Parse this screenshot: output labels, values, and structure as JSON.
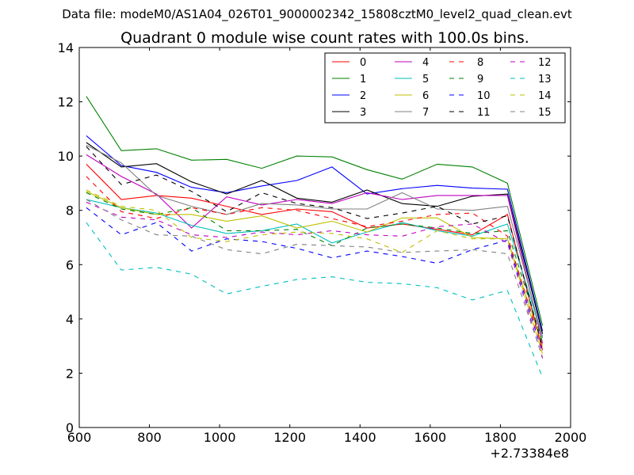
{
  "chart_data": {
    "type": "line",
    "suptitle": "Data file: modeM0/AS1A04_026T01_9000002342_15808cztM0_level2_quad_clean.evt",
    "title": "Quadrant 0 module wise count rates with 100.0s bins.",
    "xlabel": "",
    "ylabel": "",
    "xlim": [
      600,
      2000
    ],
    "ylim": [
      0,
      14
    ],
    "xticks": [
      "600",
      "800",
      "1000",
      "1200",
      "1400",
      "1600",
      "1800",
      "2000"
    ],
    "yticks": [
      "0",
      "2",
      "4",
      "6",
      "8",
      "10",
      "12",
      "14"
    ],
    "x_offset_label": "+2.73384e8",
    "legend_position": "top-right",
    "grid": false,
    "x": [
      620,
      720,
      820,
      920,
      1020,
      1120,
      1220,
      1320,
      1420,
      1520,
      1620,
      1720,
      1820,
      1920
    ],
    "series": [
      {
        "name": "0",
        "color": "#ff0000",
        "dashed": false,
        "values": [
          9.7,
          8.4,
          8.55,
          8.45,
          8.15,
          7.85,
          8.05,
          7.95,
          7.35,
          7.5,
          7.3,
          7.1,
          7.85,
          2.85
        ]
      },
      {
        "name": "1",
        "color": "#008000",
        "dashed": false,
        "values": [
          12.2,
          10.2,
          10.27,
          9.85,
          9.88,
          9.55,
          10.0,
          9.97,
          9.5,
          9.15,
          9.7,
          9.6,
          9.0,
          3.75
        ]
      },
      {
        "name": "2",
        "color": "#0000ff",
        "dashed": false,
        "values": [
          10.75,
          9.65,
          9.4,
          8.85,
          8.65,
          8.9,
          9.1,
          9.6,
          8.6,
          8.8,
          8.92,
          8.82,
          8.78,
          3.55
        ]
      },
      {
        "name": "3",
        "color": "#000000",
        "dashed": false,
        "values": [
          10.5,
          9.6,
          9.72,
          9.05,
          8.6,
          9.1,
          8.45,
          8.3,
          8.75,
          8.25,
          8.15,
          8.52,
          8.6,
          3.45
        ]
      },
      {
        "name": "4",
        "color": "#bf00bf",
        "dashed": false,
        "values": [
          10.05,
          9.25,
          8.6,
          7.35,
          8.5,
          8.2,
          8.4,
          8.25,
          8.65,
          8.4,
          8.55,
          8.55,
          8.55,
          3.1
        ]
      },
      {
        "name": "5",
        "color": "#00bfbf",
        "dashed": false,
        "values": [
          8.4,
          8.1,
          7.9,
          7.45,
          7.15,
          7.25,
          7.5,
          6.8,
          7.2,
          7.55,
          7.25,
          7.05,
          7.5,
          3.35
        ]
      },
      {
        "name": "6",
        "color": "#bfbf00",
        "dashed": false,
        "values": [
          8.7,
          8.1,
          7.85,
          7.85,
          7.6,
          7.8,
          7.35,
          7.6,
          7.2,
          7.72,
          7.72,
          7.0,
          6.95,
          3.0
        ]
      },
      {
        "name": "7",
        "color": "#808080",
        "dashed": false,
        "values": [
          10.4,
          9.75,
          8.55,
          8.15,
          7.85,
          8.25,
          8.2,
          8.05,
          8.05,
          8.65,
          8.05,
          8.0,
          8.15,
          3.3
        ]
      },
      {
        "name": "8",
        "color": "#ff0000",
        "dashed": true,
        "values": [
          9.25,
          7.95,
          7.7,
          8.1,
          7.85,
          8.1,
          8.0,
          7.7,
          7.4,
          7.6,
          7.85,
          7.9,
          7.05,
          2.9
        ]
      },
      {
        "name": "9",
        "color": "#008000",
        "dashed": true,
        "values": [
          8.65,
          8.05,
          7.85,
          8.1,
          7.25,
          7.25,
          7.3,
          6.7,
          7.35,
          7.5,
          7.35,
          7.15,
          7.25,
          3.15
        ]
      },
      {
        "name": "10",
        "color": "#0000ff",
        "dashed": true,
        "values": [
          8.1,
          7.1,
          7.55,
          6.5,
          6.95,
          6.85,
          6.6,
          6.25,
          6.5,
          6.3,
          6.05,
          6.55,
          6.9,
          2.75
        ]
      },
      {
        "name": "11",
        "color": "#000000",
        "dashed": true,
        "values": [
          10.35,
          8.95,
          9.3,
          8.7,
          7.95,
          8.65,
          8.25,
          8.1,
          7.7,
          7.9,
          8.15,
          7.5,
          7.8,
          2.95
        ]
      },
      {
        "name": "12",
        "color": "#bf00bf",
        "dashed": true,
        "values": [
          8.3,
          7.75,
          7.65,
          7.1,
          7.0,
          7.2,
          7.1,
          7.25,
          7.1,
          7.05,
          7.4,
          7.5,
          6.8,
          2.55
        ]
      },
      {
        "name": "13",
        "color": "#00bfbf",
        "dashed": true,
        "values": [
          7.55,
          5.8,
          5.9,
          5.65,
          4.92,
          5.2,
          5.45,
          5.55,
          5.35,
          5.3,
          5.15,
          4.7,
          5.05,
          1.85
        ]
      },
      {
        "name": "14",
        "color": "#bfbf00",
        "dashed": true,
        "values": [
          8.75,
          8.15,
          8.0,
          7.0,
          6.85,
          7.1,
          7.2,
          7.15,
          6.95,
          6.45,
          7.25,
          6.95,
          6.95,
          2.7
        ]
      },
      {
        "name": "15",
        "color": "#808080",
        "dashed": true,
        "values": [
          8.4,
          7.65,
          7.1,
          7.05,
          6.55,
          6.4,
          6.75,
          6.7,
          6.65,
          6.45,
          6.5,
          6.55,
          6.4,
          2.6
        ]
      }
    ]
  }
}
